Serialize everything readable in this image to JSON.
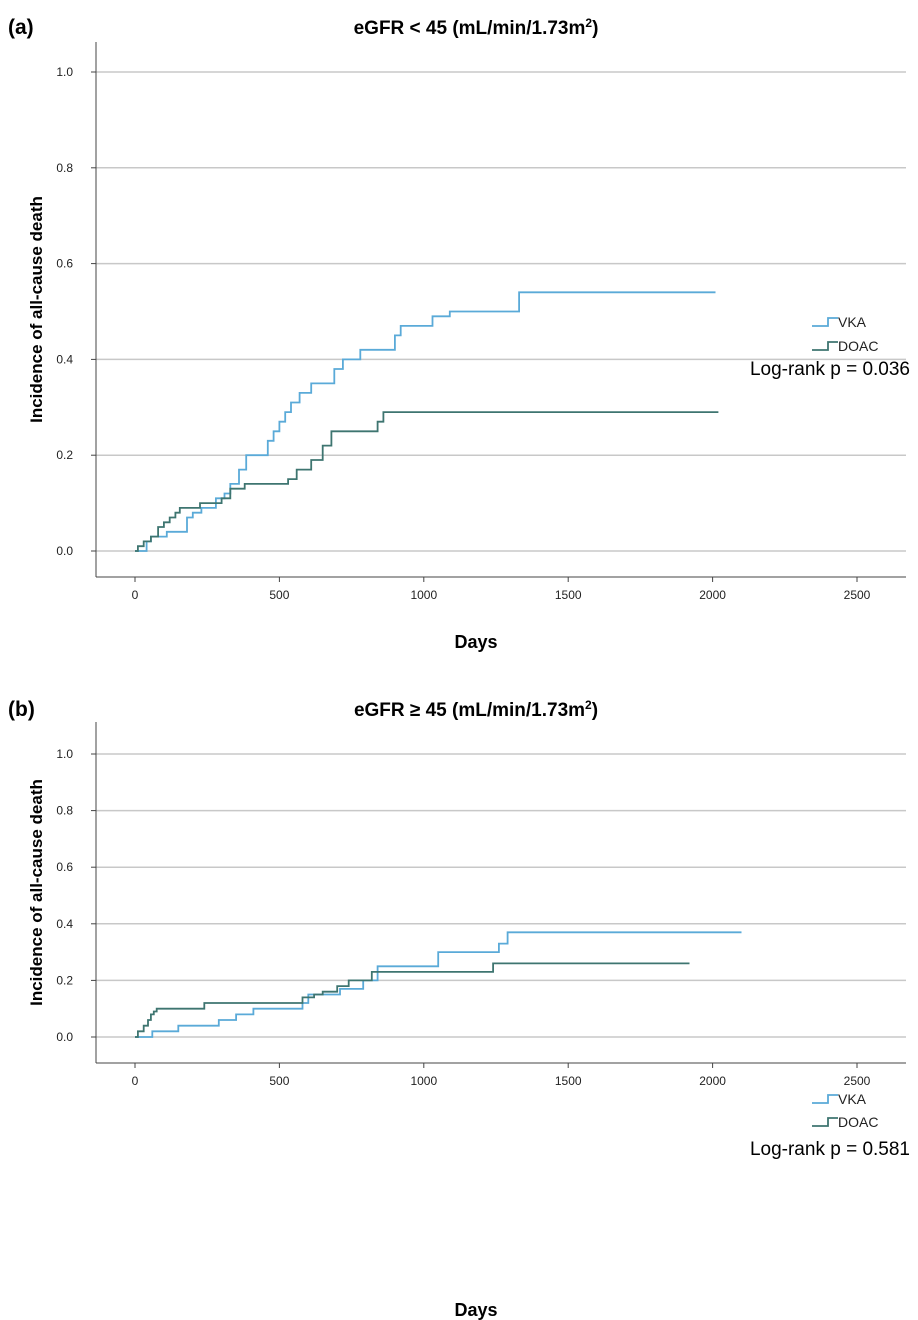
{
  "chart_data": [
    {
      "type": "line",
      "panel_label": "(a)",
      "title": "eGFR < 45 (mL/min/1.73m",
      "title_superscript": "2",
      "title_suffix": ")",
      "xlabel": "Days",
      "ylabel": "Incidence of all-cause death",
      "xlim": [
        0,
        2500
      ],
      "ylim": [
        0,
        1.0
      ],
      "xticks": [
        0,
        500,
        1000,
        1500,
        2000,
        2500
      ],
      "yticks": [
        "0.0",
        "0.2",
        "0.4",
        "0.6",
        "0.8",
        "1.0"
      ],
      "grid": "horizontal",
      "legend_position": "right",
      "annotation": "Log-rank p = 0.036",
      "series": [
        {
          "name": "VKA",
          "color": "#5aaad8",
          "step_points": [
            [
              0,
              0
            ],
            [
              40,
              0
            ],
            [
              40,
              0.02
            ],
            [
              55,
              0.02
            ],
            [
              55,
              0.03
            ],
            [
              110,
              0.03
            ],
            [
              110,
              0.04
            ],
            [
              180,
              0.04
            ],
            [
              180,
              0.07
            ],
            [
              200,
              0.07
            ],
            [
              200,
              0.08
            ],
            [
              230,
              0.08
            ],
            [
              230,
              0.09
            ],
            [
              280,
              0.09
            ],
            [
              280,
              0.11
            ],
            [
              310,
              0.11
            ],
            [
              310,
              0.12
            ],
            [
              330,
              0.12
            ],
            [
              330,
              0.14
            ],
            [
              360,
              0.14
            ],
            [
              360,
              0.17
            ],
            [
              385,
              0.17
            ],
            [
              385,
              0.2
            ],
            [
              460,
              0.2
            ],
            [
              460,
              0.23
            ],
            [
              480,
              0.23
            ],
            [
              480,
              0.25
            ],
            [
              500,
              0.25
            ],
            [
              500,
              0.27
            ],
            [
              520,
              0.27
            ],
            [
              520,
              0.29
            ],
            [
              540,
              0.29
            ],
            [
              540,
              0.31
            ],
            [
              570,
              0.31
            ],
            [
              570,
              0.33
            ],
            [
              610,
              0.33
            ],
            [
              610,
              0.35
            ],
            [
              690,
              0.35
            ],
            [
              690,
              0.38
            ],
            [
              720,
              0.38
            ],
            [
              720,
              0.4
            ],
            [
              780,
              0.4
            ],
            [
              780,
              0.42
            ],
            [
              900,
              0.42
            ],
            [
              900,
              0.45
            ],
            [
              920,
              0.45
            ],
            [
              920,
              0.47
            ],
            [
              1030,
              0.47
            ],
            [
              1030,
              0.49
            ],
            [
              1090,
              0.49
            ],
            [
              1090,
              0.5
            ],
            [
              1330,
              0.5
            ],
            [
              1330,
              0.54
            ],
            [
              2010,
              0.54
            ]
          ]
        },
        {
          "name": "DOAC",
          "color": "#3e7570",
          "step_points": [
            [
              0,
              0
            ],
            [
              10,
              0
            ],
            [
              10,
              0.01
            ],
            [
              30,
              0.01
            ],
            [
              30,
              0.02
            ],
            [
              55,
              0.02
            ],
            [
              55,
              0.03
            ],
            [
              80,
              0.03
            ],
            [
              80,
              0.05
            ],
            [
              100,
              0.05
            ],
            [
              100,
              0.06
            ],
            [
              120,
              0.06
            ],
            [
              120,
              0.07
            ],
            [
              140,
              0.07
            ],
            [
              140,
              0.08
            ],
            [
              155,
              0.08
            ],
            [
              155,
              0.09
            ],
            [
              225,
              0.09
            ],
            [
              225,
              0.1
            ],
            [
              300,
              0.1
            ],
            [
              300,
              0.11
            ],
            [
              330,
              0.11
            ],
            [
              330,
              0.13
            ],
            [
              380,
              0.13
            ],
            [
              380,
              0.14
            ],
            [
              530,
              0.14
            ],
            [
              530,
              0.15
            ],
            [
              560,
              0.15
            ],
            [
              560,
              0.17
            ],
            [
              610,
              0.17
            ],
            [
              610,
              0.19
            ],
            [
              650,
              0.19
            ],
            [
              650,
              0.22
            ],
            [
              680,
              0.22
            ],
            [
              680,
              0.25
            ],
            [
              840,
              0.25
            ],
            [
              840,
              0.27
            ],
            [
              860,
              0.27
            ],
            [
              860,
              0.29
            ],
            [
              2020,
              0.29
            ]
          ]
        }
      ]
    },
    {
      "type": "line",
      "panel_label": "(b)",
      "title": "eGFR ≥ 45 (mL/min/1.73m",
      "title_superscript": "2",
      "title_suffix": ")",
      "xlabel": "Days",
      "ylabel": "Incidence of all-cause death",
      "xlim": [
        0,
        2500
      ],
      "ylim": [
        0,
        1.0
      ],
      "xticks": [
        0,
        500,
        1000,
        1500,
        2000,
        2500
      ],
      "yticks": [
        "0.0",
        "0.2",
        "0.4",
        "0.6",
        "0.8",
        "1.0"
      ],
      "grid": "horizontal",
      "legend_position": "right",
      "annotation": "Log-rank p = 0.581",
      "series": [
        {
          "name": "VKA",
          "color": "#5aaad8",
          "step_points": [
            [
              0,
              0
            ],
            [
              60,
              0
            ],
            [
              60,
              0.02
            ],
            [
              150,
              0.02
            ],
            [
              150,
              0.04
            ],
            [
              290,
              0.04
            ],
            [
              290,
              0.06
            ],
            [
              350,
              0.06
            ],
            [
              350,
              0.08
            ],
            [
              410,
              0.08
            ],
            [
              410,
              0.1
            ],
            [
              580,
              0.1
            ],
            [
              580,
              0.12
            ],
            [
              600,
              0.12
            ],
            [
              600,
              0.15
            ],
            [
              710,
              0.15
            ],
            [
              710,
              0.17
            ],
            [
              790,
              0.17
            ],
            [
              790,
              0.2
            ],
            [
              840,
              0.2
            ],
            [
              840,
              0.25
            ],
            [
              1050,
              0.25
            ],
            [
              1050,
              0.3
            ],
            [
              1260,
              0.3
            ],
            [
              1260,
              0.33
            ],
            [
              1290,
              0.33
            ],
            [
              1290,
              0.37
            ],
            [
              2100,
              0.37
            ]
          ]
        },
        {
          "name": "DOAC",
          "color": "#3e7570",
          "step_points": [
            [
              0,
              0
            ],
            [
              10,
              0
            ],
            [
              10,
              0.02
            ],
            [
              30,
              0.02
            ],
            [
              30,
              0.04
            ],
            [
              45,
              0.04
            ],
            [
              45,
              0.06
            ],
            [
              55,
              0.06
            ],
            [
              55,
              0.08
            ],
            [
              65,
              0.08
            ],
            [
              65,
              0.09
            ],
            [
              75,
              0.09
            ],
            [
              75,
              0.1
            ],
            [
              240,
              0.1
            ],
            [
              240,
              0.12
            ],
            [
              580,
              0.12
            ],
            [
              580,
              0.14
            ],
            [
              620,
              0.14
            ],
            [
              620,
              0.15
            ],
            [
              650,
              0.15
            ],
            [
              650,
              0.16
            ],
            [
              700,
              0.16
            ],
            [
              700,
              0.18
            ],
            [
              740,
              0.18
            ],
            [
              740,
              0.2
            ],
            [
              820,
              0.2
            ],
            [
              820,
              0.23
            ],
            [
              1240,
              0.23
            ],
            [
              1240,
              0.26
            ],
            [
              1920,
              0.26
            ]
          ]
        }
      ]
    }
  ]
}
